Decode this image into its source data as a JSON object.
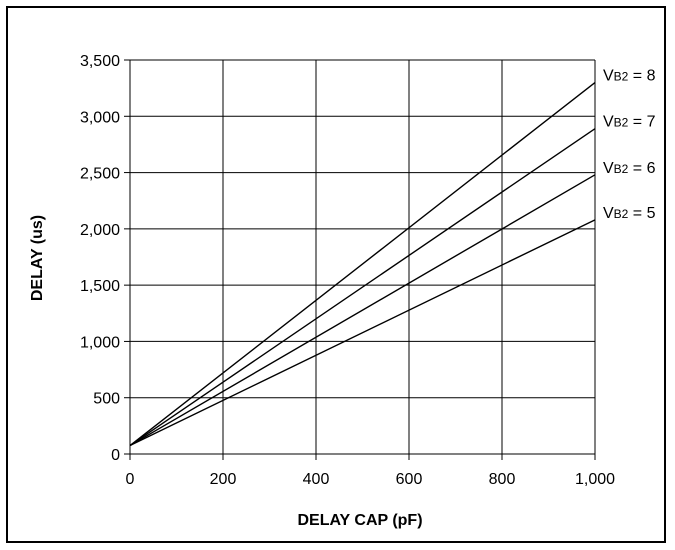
{
  "chart_data": {
    "type": "line",
    "title": "",
    "xlabel": "DELAY CAP (pF)",
    "ylabel": "DELAY (us)",
    "xlim": [
      0,
      1000
    ],
    "ylim": [
      0,
      3500
    ],
    "x_ticks": [
      0,
      200,
      400,
      600,
      800,
      1000
    ],
    "x_tick_labels": [
      "0",
      "200",
      "400",
      "600",
      "800",
      "1,000"
    ],
    "y_ticks": [
      0,
      500,
      1000,
      1500,
      2000,
      2500,
      3000,
      3500
    ],
    "y_tick_labels": [
      "0",
      "500",
      "1,000",
      "1,500",
      "2,000",
      "2,500",
      "3,000",
      "3,500"
    ],
    "grid": true,
    "legend": "right of plot, label at line end",
    "line_color": "#000000",
    "series": [
      {
        "name": "VB2 = 8",
        "label_main": "V",
        "label_sub": "B2",
        "label_rest": " = 8",
        "x": [
          0,
          1000
        ],
        "values": [
          75,
          3300
        ]
      },
      {
        "name": "VB2 = 7",
        "label_main": "V",
        "label_sub": "B2",
        "label_rest": " = 7",
        "x": [
          0,
          1000
        ],
        "values": [
          75,
          2890
        ]
      },
      {
        "name": "VB2 = 6",
        "label_main": "V",
        "label_sub": "B2",
        "label_rest": " = 6",
        "x": [
          0,
          1000
        ],
        "values": [
          75,
          2480
        ]
      },
      {
        "name": "VB2 = 5",
        "label_main": "V",
        "label_sub": "B2",
        "label_rest": " = 5",
        "x": [
          0,
          1000
        ],
        "values": [
          75,
          2080
        ]
      }
    ]
  }
}
